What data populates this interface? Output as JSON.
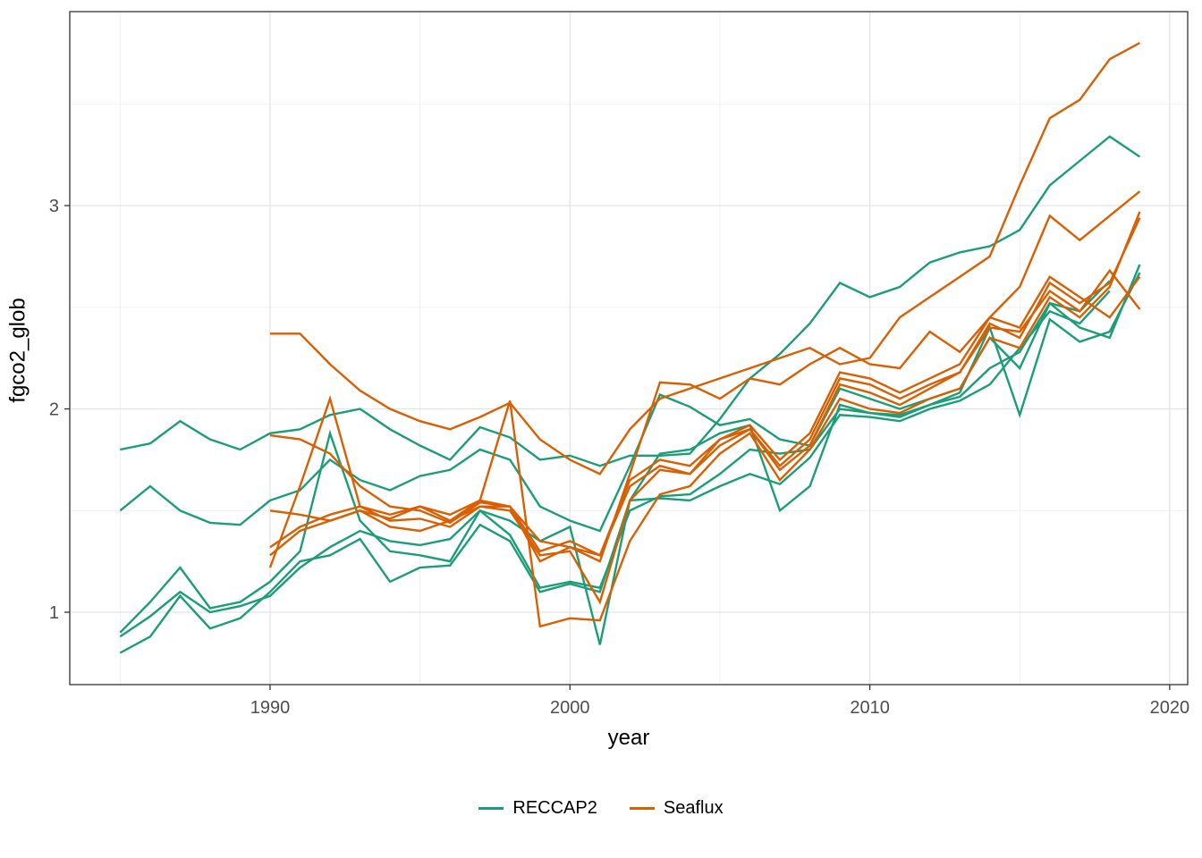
{
  "chart_data": {
    "type": "line",
    "title": "",
    "xlabel": "year",
    "ylabel": "fgco2_glob",
    "xlim": [
      1983.32,
      2020.6
    ],
    "ylim": [
      0.644,
      3.954
    ],
    "x_ticks": {
      "major": [
        1990,
        2000,
        2010,
        2020
      ],
      "minor": [
        1985,
        1995,
        2005,
        2015
      ]
    },
    "y_ticks": {
      "major": [
        1,
        2,
        3
      ],
      "minor": [
        1.5,
        2.5,
        3.5
      ]
    },
    "x_tick_labels": [
      "1990",
      "2000",
      "2010",
      "2020"
    ],
    "y_tick_labels": [
      "1",
      "2",
      "3"
    ],
    "grid": "major-and-minor",
    "panel_border": true,
    "colors": {
      "RECCAP2": "#1B9E77",
      "Seaflux": "#D95F02"
    },
    "legend": {
      "position": "bottom",
      "entries": [
        {
          "label": "RECCAP2",
          "color": "#1B9E77"
        },
        {
          "label": "Seaflux",
          "color": "#D95F02"
        }
      ]
    },
    "series": [
      {
        "group": "RECCAP2",
        "start_year": 1985,
        "values": [
          1.8,
          1.83,
          1.94,
          1.85,
          1.8,
          1.88,
          1.9,
          1.97,
          2.0,
          1.9,
          1.82,
          1.75,
          1.91,
          1.86,
          1.75,
          1.77,
          1.72,
          1.77,
          1.77,
          1.78,
          1.95,
          2.15,
          2.27,
          2.42,
          2.62,
          2.55,
          2.6,
          2.72,
          2.77,
          2.8,
          2.88,
          3.1,
          3.22,
          3.34,
          3.24
        ]
      },
      {
        "group": "RECCAP2",
        "start_year": 1985,
        "values": [
          1.5,
          1.62,
          1.5,
          1.44,
          1.43,
          1.55,
          1.6,
          1.75,
          1.65,
          1.6,
          1.67,
          1.7,
          1.8,
          1.75,
          1.52,
          1.45,
          1.4,
          1.72,
          2.07,
          2.01,
          1.92,
          1.95,
          1.85,
          1.82,
          2.1,
          2.05,
          2.0,
          2.05,
          2.1,
          2.35,
          2.2,
          2.52,
          2.4,
          2.35,
          2.71
        ]
      },
      {
        "group": "RECCAP2",
        "start_year": 1985,
        "values": [
          0.9,
          1.05,
          1.22,
          1.02,
          1.05,
          1.15,
          1.3,
          1.88,
          1.45,
          1.3,
          1.28,
          1.25,
          1.5,
          1.45,
          1.35,
          1.42,
          0.84,
          1.55,
          1.78,
          1.8,
          1.88,
          1.92,
          1.5,
          1.62,
          2.02,
          1.98,
          1.97,
          2.02,
          2.08,
          2.4,
          1.97,
          2.44,
          2.33,
          2.38,
          2.67
        ]
      },
      {
        "group": "RECCAP2",
        "start_year": 1985,
        "values": [
          0.88,
          0.98,
          1.1,
          1.0,
          1.03,
          1.08,
          1.22,
          1.32,
          1.4,
          1.35,
          1.33,
          1.36,
          1.5,
          1.38,
          1.12,
          1.15,
          1.12,
          1.5,
          1.57,
          1.58,
          1.68,
          1.8,
          1.78,
          1.8,
          2.0,
          1.98,
          1.96,
          2.02,
          2.06,
          2.2,
          2.28,
          2.52,
          2.48,
          2.63
        ]
      },
      {
        "group": "RECCAP2",
        "start_year": 1985,
        "values": [
          0.8,
          0.88,
          1.08,
          0.92,
          0.97,
          1.1,
          1.25,
          1.28,
          1.36,
          1.15,
          1.22,
          1.23,
          1.43,
          1.35,
          1.1,
          1.14,
          1.1,
          1.55,
          1.56,
          1.55,
          1.62,
          1.68,
          1.63,
          1.76,
          1.97,
          1.96,
          1.94,
          2.0,
          2.04,
          2.12,
          2.3,
          2.48,
          2.42,
          2.58
        ]
      },
      {
        "group": "Seaflux",
        "start_year": 1990,
        "values": [
          2.37,
          2.37,
          2.22,
          2.09,
          2.0,
          1.94,
          1.9,
          1.96,
          2.03,
          1.85,
          1.75,
          1.68,
          1.9,
          2.05,
          2.1,
          2.15,
          2.2,
          2.25,
          2.3,
          2.22,
          2.25,
          2.45,
          2.55,
          2.65,
          2.75,
          3.1,
          3.43,
          3.52,
          3.72,
          3.8
        ]
      },
      {
        "group": "Seaflux",
        "start_year": 1990,
        "values": [
          1.87,
          1.85,
          1.78,
          1.62,
          1.52,
          1.5,
          1.44,
          1.54,
          1.52,
          1.35,
          1.32,
          1.25,
          1.68,
          2.13,
          2.12,
          2.05,
          2.15,
          2.12,
          2.22,
          2.3,
          2.22,
          2.2,
          2.38,
          2.28,
          2.45,
          2.6,
          2.95,
          2.83,
          2.95,
          3.07
        ]
      },
      {
        "group": "Seaflux",
        "start_year": 1990,
        "values": [
          1.22,
          1.62,
          2.05,
          1.52,
          1.48,
          1.52,
          1.45,
          1.52,
          1.5,
          1.28,
          1.3,
          1.05,
          1.55,
          1.7,
          1.68,
          1.85,
          1.9,
          1.72,
          1.85,
          2.15,
          2.12,
          2.05,
          2.12,
          2.18,
          2.4,
          2.38,
          2.58,
          2.48,
          2.68,
          2.49
        ]
      },
      {
        "group": "Seaflux",
        "start_year": 1990,
        "values": [
          1.32,
          1.42,
          1.48,
          1.52,
          1.45,
          1.46,
          1.42,
          1.52,
          1.52,
          1.25,
          1.32,
          1.28,
          1.62,
          1.72,
          1.68,
          1.82,
          1.9,
          1.7,
          1.82,
          2.12,
          2.08,
          2.02,
          2.1,
          2.18,
          2.42,
          2.35,
          2.62,
          2.52,
          2.62,
          2.94
        ]
      },
      {
        "group": "Seaflux",
        "start_year": 1990,
        "values": [
          1.28,
          1.4,
          1.45,
          1.5,
          1.42,
          1.4,
          1.45,
          1.55,
          2.04,
          0.93,
          0.97,
          0.96,
          1.35,
          1.58,
          1.62,
          1.78,
          1.88,
          1.65,
          1.8,
          2.05,
          2.0,
          1.98,
          2.05,
          2.1,
          2.35,
          2.3,
          2.55,
          2.45,
          2.6,
          2.97
        ]
      },
      {
        "group": "Seaflux",
        "start_year": 1990,
        "values": [
          1.5,
          1.48,
          1.45,
          1.5,
          1.46,
          1.52,
          1.48,
          1.55,
          1.52,
          1.3,
          1.35,
          1.28,
          1.65,
          1.75,
          1.72,
          1.85,
          1.92,
          1.75,
          1.88,
          2.18,
          2.15,
          2.08,
          2.15,
          2.22,
          2.45,
          2.4,
          2.65,
          2.55,
          2.45,
          2.65
        ]
      }
    ]
  },
  "style": {
    "grid_major_color": "#e4e4e4",
    "grid_minor_color": "#efefef",
    "panel_border_color": "#333333",
    "tick_color": "#333333",
    "tick_label_color": "#4d4d4d"
  }
}
